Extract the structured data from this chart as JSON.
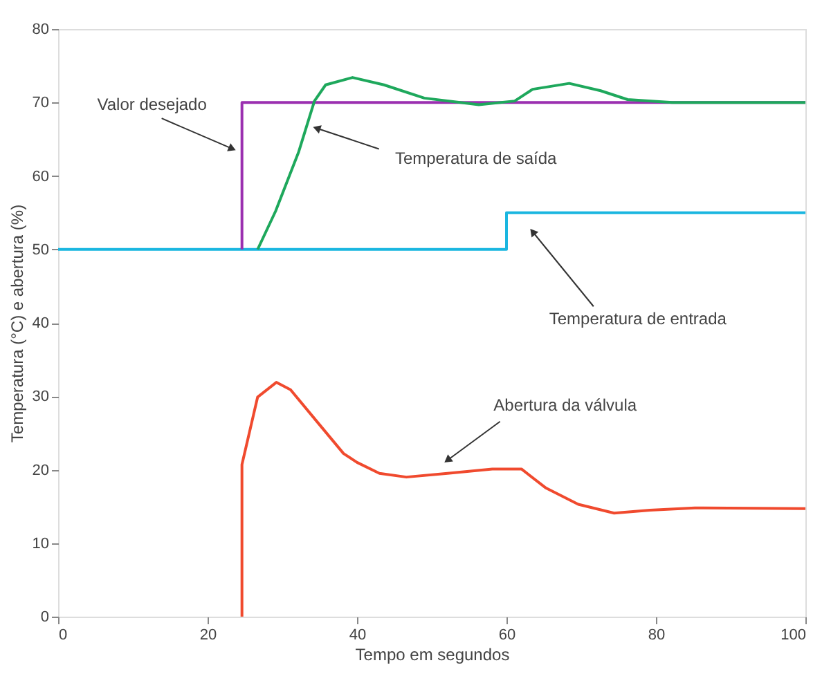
{
  "chart_data": {
    "type": "line",
    "xlabel": "Tempo em segundos",
    "ylabel": "Temperatura (°C) e abertura (%)",
    "xlim": [
      0,
      100
    ],
    "ylim": [
      0,
      80
    ],
    "xticks": [
      0,
      20,
      40,
      60,
      80,
      100
    ],
    "yticks": [
      0,
      10,
      20,
      30,
      40,
      50,
      60,
      70,
      80
    ],
    "grid": false,
    "legend": false,
    "marker": "none",
    "line_style": "solid",
    "series": [
      {
        "color": "#1ab6e0",
        "x": [
          0,
          60,
          60,
          100
        ],
        "values": [
          50,
          50,
          55,
          55
        ]
      },
      {
        "color": "#9b30b0",
        "x": [
          24.6,
          24.6,
          100
        ],
        "values": [
          50,
          70,
          70
        ]
      },
      {
        "color": "#1ea85c",
        "x": [
          26.7,
          29.1,
          32.2,
          34.3,
          35.8,
          39.4,
          43.6,
          49,
          56.3,
          61.1,
          63.5,
          68.4,
          72.6,
          76.2,
          82.2,
          100
        ],
        "values": [
          50,
          55.2,
          63.3,
          70.2,
          72.4,
          73.4,
          72.4,
          70.6,
          69.7,
          70.2,
          71.8,
          72.6,
          71.6,
          70.4,
          70,
          70
        ]
      },
      {
        "color": "#f04a2e",
        "x": [
          24.6,
          24.6,
          26.7,
          29.2,
          31.1,
          34.6,
          38.2,
          40,
          43,
          46.6,
          52.1,
          58.1,
          62,
          65.3,
          69.6,
          74.4,
          79.2,
          85.2,
          100
        ],
        "values": [
          0,
          20.7,
          29.9,
          31.9,
          30.9,
          26.6,
          22.2,
          21,
          19.5,
          19,
          19.5,
          20.1,
          20.1,
          17.5,
          15.3,
          14.1,
          14.5,
          14.8,
          14.7
        ]
      }
    ],
    "annotations": [
      {
        "text": "Valor desejado",
        "x": 23.3,
        "y": 63.7
      },
      {
        "text": "Temperatura de saída",
        "x": 34.6,
        "y": 66.5
      },
      {
        "text": "Temperatura de entrada",
        "x": 63.5,
        "y": 52.4
      },
      {
        "text": "Abertura da válvula",
        "x": 52.1,
        "y": 21.3
      }
    ]
  }
}
